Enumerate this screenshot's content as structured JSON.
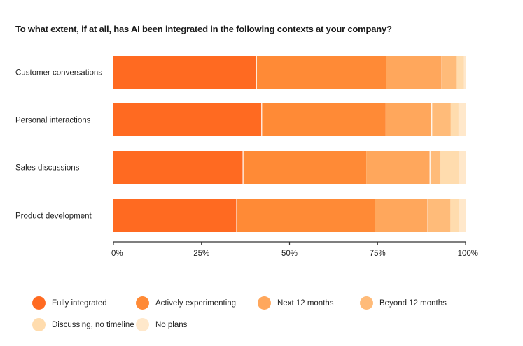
{
  "chart_data": {
    "type": "bar",
    "orientation": "horizontal",
    "stacked": true,
    "title": "To what extent, if at all, has AI been integrated in the following contexts at your company?",
    "xlabel": "",
    "ylabel": "",
    "xlim": [
      0,
      100
    ],
    "ticks": [
      "0%",
      "25%",
      "50%",
      "75%",
      "100%"
    ],
    "tick_values": [
      0,
      25,
      50,
      75,
      100
    ],
    "categories": [
      "Customer conversations",
      "Personal interactions",
      "Sales discussions",
      "Product development"
    ],
    "series": [
      {
        "name": "Fully integrated",
        "color": "#ff6a21",
        "values": [
          40.6,
          42.1,
          36.8,
          35.0
        ]
      },
      {
        "name": "Actively experimenting",
        "color": "#ff8a36",
        "values": [
          36.8,
          35.2,
          35.0,
          39.2
        ]
      },
      {
        "name": "Next 12 months",
        "color": "#ffa75c",
        "values": [
          15.9,
          13.1,
          18.1,
          15.1
        ]
      },
      {
        "name": "Beyond 12 months",
        "color": "#ffbb79",
        "values": [
          4.2,
          5.4,
          3.0,
          6.4
        ]
      },
      {
        "name": "Discussing, no timeline",
        "color": "#ffdcae",
        "values": [
          2.0,
          2.2,
          5.2,
          2.4
        ]
      },
      {
        "name": "No plans",
        "color": "#ffe8cb",
        "values": [
          0.6,
          2.0,
          2.0,
          2.0
        ]
      }
    ],
    "grid": false,
    "legend_position": "bottom"
  }
}
